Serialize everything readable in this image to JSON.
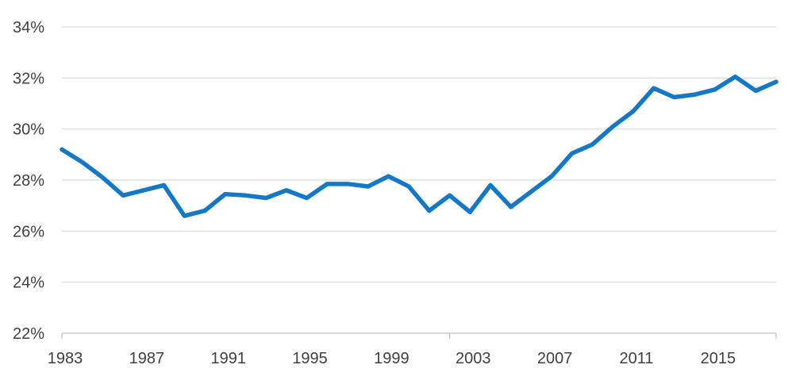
{
  "chart_data": {
    "type": "line",
    "title": "",
    "xlabel": "",
    "ylabel": "",
    "x": [
      1983,
      1984,
      1985,
      1986,
      1987,
      1988,
      1989,
      1990,
      1991,
      1992,
      1993,
      1994,
      1995,
      1996,
      1997,
      1998,
      1999,
      2000,
      2001,
      2002,
      2003,
      2004,
      2005,
      2006,
      2007,
      2008,
      2009,
      2010,
      2011,
      2012,
      2013,
      2014,
      2015,
      2016,
      2017,
      2018
    ],
    "series": [
      {
        "values": [
          29.2,
          28.7,
          28.1,
          27.4,
          27.6,
          27.8,
          26.6,
          26.8,
          27.45,
          27.4,
          27.3,
          27.6,
          27.3,
          27.85,
          27.85,
          27.75,
          28.15,
          27.75,
          26.8,
          27.4,
          26.75,
          27.8,
          26.95,
          27.55,
          28.15,
          29.05,
          29.4,
          30.1,
          30.7,
          31.6,
          31.25,
          31.35,
          31.55,
          32.05,
          31.5,
          31.85
        ]
      }
    ],
    "x_ticks": [
      "1983",
      "1987",
      "1991",
      "1995",
      "1999",
      "2003",
      "2007",
      "2011",
      "2015"
    ],
    "y_ticks": [
      "22%",
      "24%",
      "26%",
      "28%",
      "30%",
      "32%",
      "34%"
    ],
    "ylim": [
      22,
      34
    ],
    "xlim": [
      1983,
      2018
    ],
    "grid": "horizontal",
    "legend": "none",
    "colors": {
      "series": "#1478c8",
      "grid": "#d9d9d9",
      "axis": "#bfbfbf",
      "text": "#404040"
    }
  }
}
